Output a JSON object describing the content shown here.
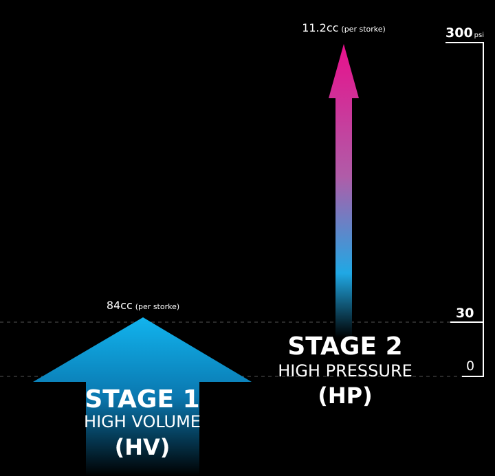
{
  "stage1": {
    "volume": "84cc",
    "volume_note": "(per storke)",
    "title": "STAGE 1",
    "subtitle": "HIGH VOLUME",
    "abbr": "(HV)"
  },
  "stage2": {
    "volume": "11.2cc",
    "volume_note": "(per storke)",
    "title": "STAGE 2",
    "subtitle": "HIGH PRESSURE",
    "abbr": "(HP)"
  },
  "scale": {
    "top": "300",
    "unit": "psi",
    "middle": "30",
    "bottom": "0"
  }
}
